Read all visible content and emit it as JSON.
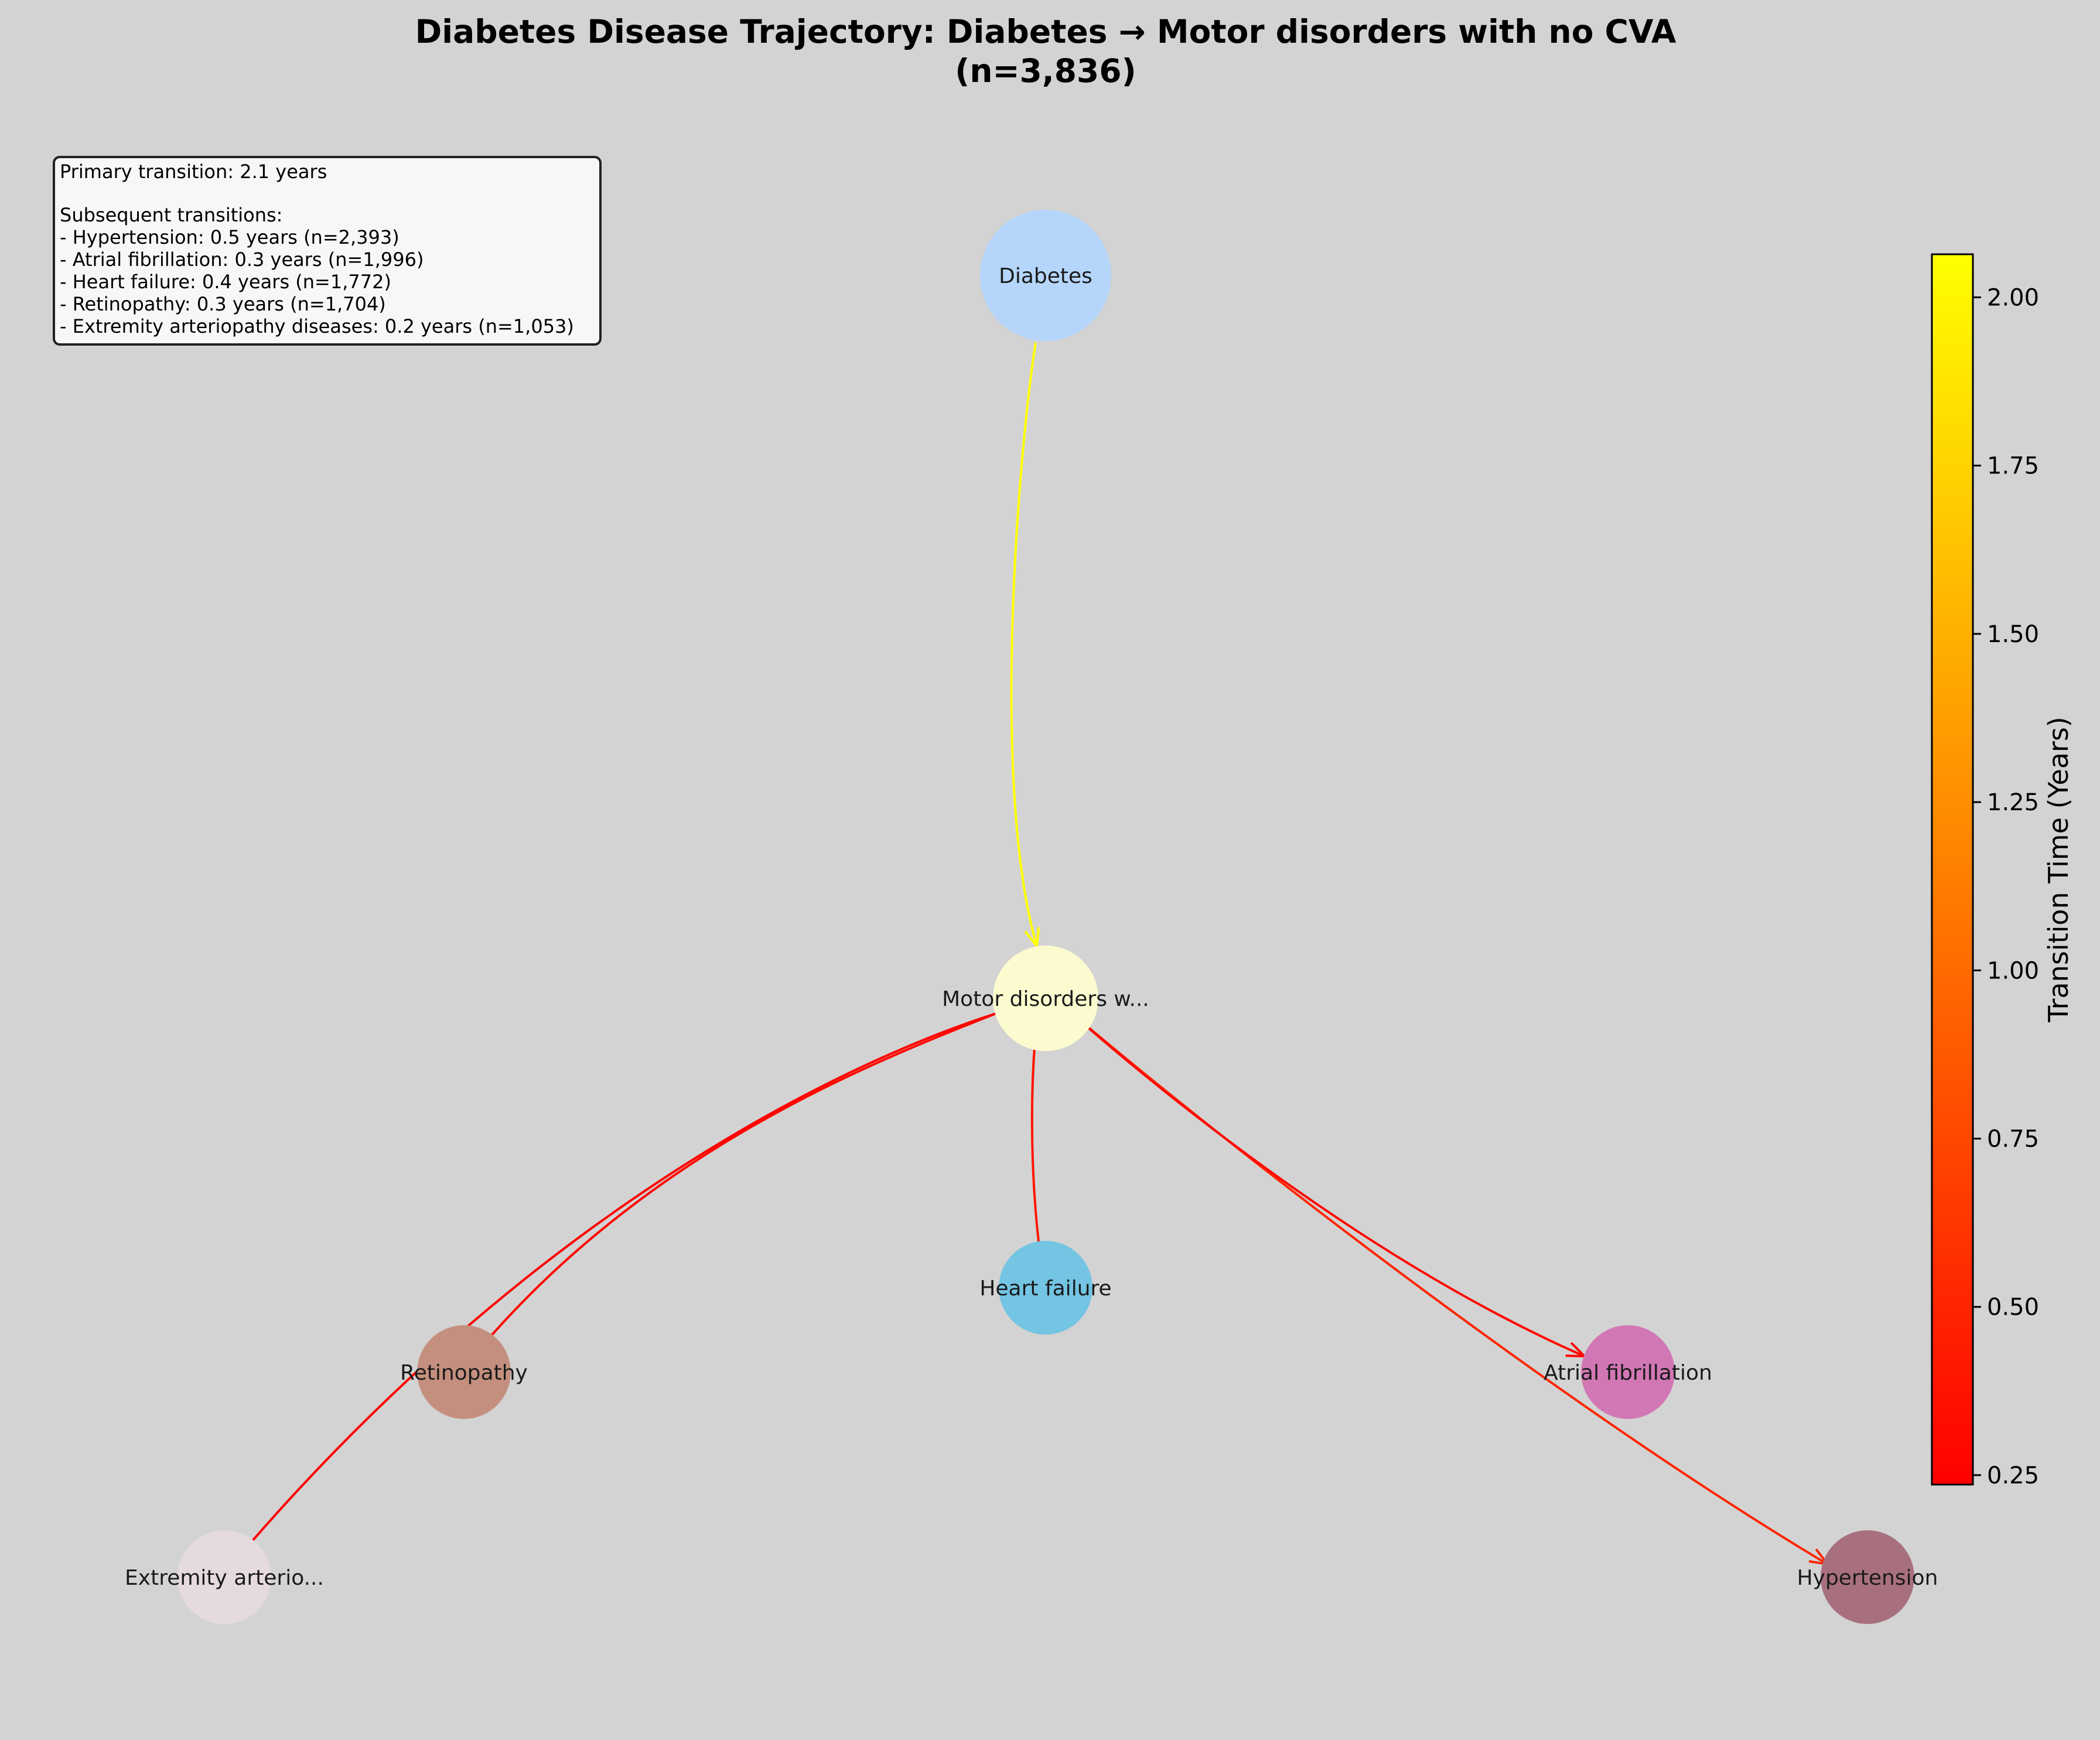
{
  "title": {
    "line1": "Diabetes Disease Trajectory: Diabetes → Motor disorders with no CVA",
    "line2": "(n=3,836)"
  },
  "info_box": {
    "lines": [
      "Primary transition: 2.1 years",
      "",
      "Subsequent transitions:",
      "- Hypertension: 0.5 years (n=2,393)",
      "- Atrial fibrillation: 0.3 years (n=1,996)",
      "- Heart failure: 0.4 years (n=1,772)",
      "- Retinopathy: 0.3 years (n=1,704)",
      "- Extremity arteriopathy diseases: 0.2 years (n=1,053)"
    ]
  },
  "nodes": [
    {
      "id": "diabetes",
      "label": "Diabetes",
      "color": "#b5d6fa"
    },
    {
      "id": "motor",
      "label": "Motor disorders w...",
      "color": "#fcfbcf"
    },
    {
      "id": "heart_failure",
      "label": "Heart failure",
      "color": "#74c4e3"
    },
    {
      "id": "retinopathy",
      "label": "Retinopathy",
      "color": "#c48f7e"
    },
    {
      "id": "atrial_fibrillation",
      "label": "Atrial fibrillation",
      "color": "#d177b4"
    },
    {
      "id": "extremity",
      "label": "Extremity arterio...",
      "color": "#e5dadf"
    },
    {
      "id": "hypertension",
      "label": "Hypertension",
      "color": "#a8707f"
    }
  ],
  "edges": [
    {
      "from": "diabetes",
      "to": "motor",
      "years": 2.1
    },
    {
      "from": "motor",
      "to": "hypertension",
      "years": 0.5,
      "n": 2393
    },
    {
      "from": "motor",
      "to": "atrial_fibrillation",
      "years": 0.3,
      "n": 1996
    },
    {
      "from": "motor",
      "to": "heart_failure",
      "years": 0.4,
      "n": 1772
    },
    {
      "from": "motor",
      "to": "retinopathy",
      "years": 0.3,
      "n": 1704
    },
    {
      "from": "motor",
      "to": "extremity",
      "years": 0.2,
      "n": 1053
    }
  ],
  "colorbar": {
    "label": "Transition Time (Years)",
    "min": 0.236,
    "max": 2.064,
    "ticks": [
      "0.25",
      "0.50",
      "0.75",
      "1.00",
      "1.25",
      "1.50",
      "1.75",
      "2.00"
    ],
    "colormap": "autumn",
    "low_color": "#ff0000",
    "high_color": "#ffff00"
  }
}
